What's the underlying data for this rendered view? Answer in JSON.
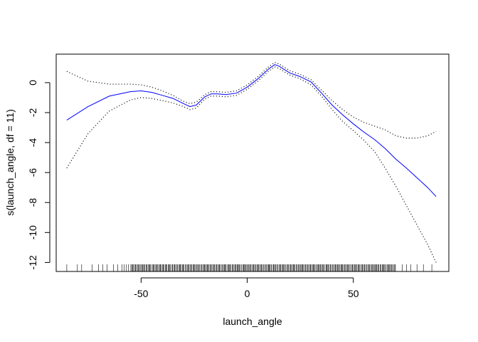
{
  "chart_data": {
    "type": "line",
    "title": "",
    "xlabel": "launch_angle",
    "ylabel": "s(launch_angle, df = 11)",
    "xlim": [
      -90,
      95
    ],
    "ylim": [
      -12.6,
      1.9
    ],
    "x_ticks": [
      -50,
      0,
      50
    ],
    "x_tick_labels": [
      "-50",
      "0",
      "50"
    ],
    "y_ticks": [
      0,
      -2,
      -4,
      -6,
      -8,
      -10,
      -12
    ],
    "y_tick_labels": [
      "0",
      "-2",
      "-4",
      "-6",
      "-8",
      "-10",
      "-12"
    ],
    "grid": false,
    "legend": "none",
    "colors": {
      "fit": "#0000ff",
      "band": "#000000",
      "axes": "#000000",
      "rug": "#000000"
    },
    "series": [
      {
        "role": "fit",
        "style": "solid",
        "x": [
          -85,
          -75,
          -65,
          -55,
          -50,
          -45,
          -40,
          -35,
          -30,
          -27,
          -24,
          -20,
          -17,
          -14,
          -10,
          -5,
          0,
          5,
          10,
          13,
          15,
          20,
          25,
          30,
          35,
          40,
          45,
          50,
          55,
          60,
          65,
          70,
          75,
          80,
          85,
          89
        ],
        "y": [
          -2.5,
          -1.6,
          -0.9,
          -0.6,
          -0.55,
          -0.65,
          -0.85,
          -1.05,
          -1.4,
          -1.6,
          -1.5,
          -0.95,
          -0.75,
          -0.75,
          -0.8,
          -0.7,
          -0.3,
          0.25,
          0.9,
          1.2,
          1.1,
          0.65,
          0.4,
          0.05,
          -0.7,
          -1.5,
          -2.15,
          -2.75,
          -3.3,
          -3.8,
          -4.4,
          -5.1,
          -5.7,
          -6.35,
          -7.0,
          -7.6
        ]
      },
      {
        "role": "upper-band",
        "style": "dotted",
        "x": [
          -85,
          -75,
          -65,
          -55,
          -50,
          -45,
          -40,
          -35,
          -30,
          -27,
          -24,
          -20,
          -17,
          -14,
          -10,
          -5,
          0,
          5,
          10,
          13,
          15,
          20,
          25,
          30,
          35,
          40,
          45,
          50,
          55,
          60,
          65,
          70,
          75,
          80,
          85,
          89
        ],
        "y": [
          0.75,
          0.1,
          -0.1,
          -0.1,
          -0.15,
          -0.3,
          -0.55,
          -0.85,
          -1.25,
          -1.4,
          -1.3,
          -0.8,
          -0.6,
          -0.6,
          -0.65,
          -0.55,
          -0.15,
          0.4,
          1.05,
          1.35,
          1.25,
          0.8,
          0.55,
          0.2,
          -0.5,
          -1.2,
          -1.8,
          -2.3,
          -2.65,
          -2.9,
          -3.15,
          -3.55,
          -3.7,
          -3.7,
          -3.55,
          -3.25
        ]
      },
      {
        "role": "lower-band",
        "style": "dotted",
        "x": [
          -85,
          -75,
          -65,
          -55,
          -50,
          -45,
          -40,
          -35,
          -30,
          -27,
          -24,
          -20,
          -17,
          -14,
          -10,
          -5,
          0,
          5,
          10,
          13,
          15,
          20,
          25,
          30,
          35,
          40,
          45,
          50,
          55,
          60,
          65,
          70,
          75,
          80,
          85,
          89
        ],
        "y": [
          -5.7,
          -3.4,
          -1.9,
          -1.15,
          -1.0,
          -1.05,
          -1.2,
          -1.35,
          -1.6,
          -1.8,
          -1.7,
          -1.1,
          -0.9,
          -0.9,
          -0.95,
          -0.85,
          -0.45,
          0.1,
          0.75,
          1.05,
          0.95,
          0.5,
          0.25,
          -0.15,
          -0.9,
          -1.8,
          -2.6,
          -3.2,
          -3.85,
          -4.6,
          -5.7,
          -6.9,
          -8.2,
          -9.5,
          -10.8,
          -12.0
        ]
      }
    ],
    "rug": {
      "dense_range": [
        -55,
        70
      ],
      "sparse_x": [
        -85,
        -80,
        -78,
        -73,
        -70,
        -68,
        -66,
        -63,
        -61,
        -59,
        -58,
        -57,
        -56,
        73,
        75,
        77,
        80,
        83,
        87
      ]
    }
  }
}
